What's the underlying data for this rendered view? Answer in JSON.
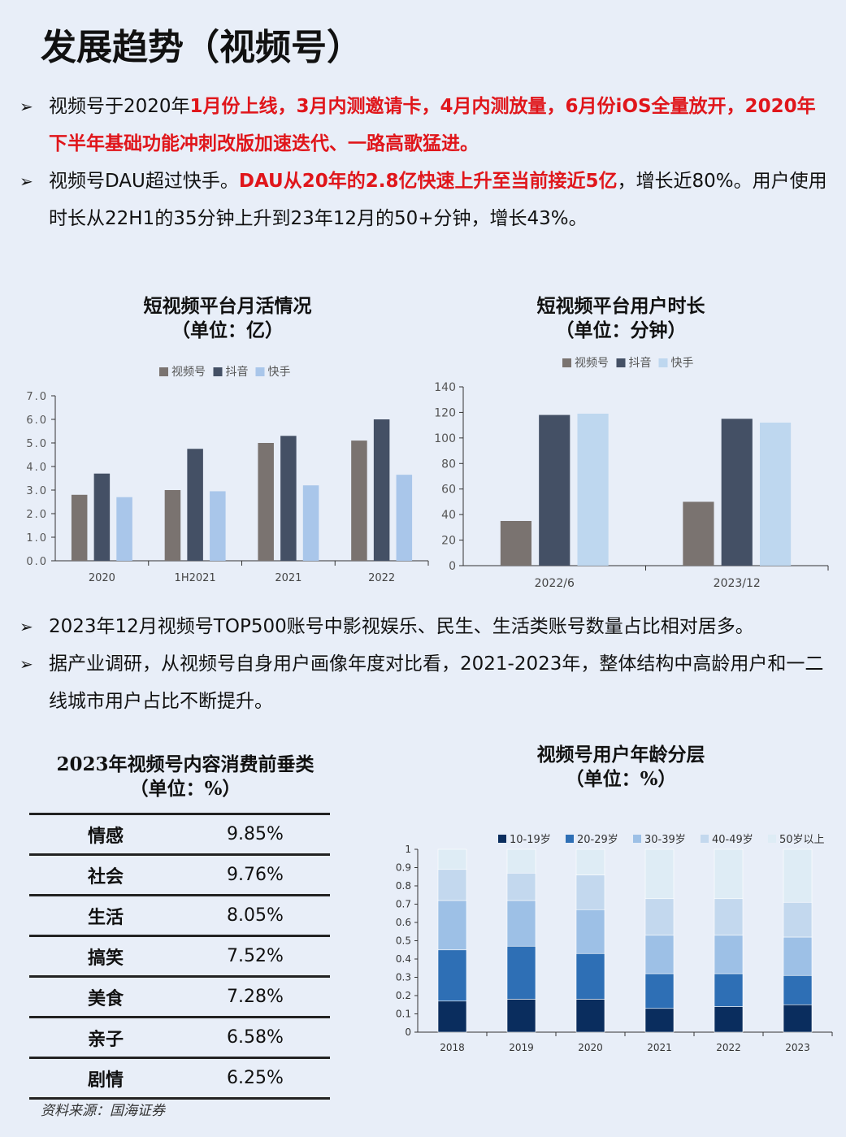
{
  "header": {
    "title": "发展趋势（视频号）"
  },
  "section1": {
    "bullets": [
      {
        "segments": [
          {
            "text": "视频号于2020年",
            "red": false
          },
          {
            "text": "1月份上线，3月内测邀请卡，4月内测放量，6月份iOS全量放开，2020年下半年基础功能冲刺改版加速迭代、一路高歌猛进。",
            "red": true
          }
        ]
      },
      {
        "segments": [
          {
            "text": "视频号DAU超过快手。",
            "red": false
          },
          {
            "text": "DAU从20年的2.8亿快速上升至当前接近5亿",
            "red": true
          },
          {
            "text": "，增长近80%。用户使用时长从22H1的35分钟上升到23年12月的50+分钟，增长43%。",
            "red": false
          }
        ]
      }
    ]
  },
  "section2": {
    "bullets": [
      {
        "segments": [
          {
            "text": "2023年12月视频号TOP500账号中影视娱乐、民生、生活类账号数量占比相对居多。",
            "red": false
          }
        ]
      },
      {
        "segments": [
          {
            "text": "据产业调研，从视频号自身用户画像年度对比看，2021-2023年，整体结构中高龄用户和一二线城市用户占比不断提升。",
            "red": false
          }
        ]
      }
    ]
  },
  "chart_data": [
    {
      "type": "bar",
      "title": "短视频平台月活情况",
      "subtitle": "（单位：亿）",
      "categories": [
        "2020",
        "1H2021",
        "2021",
        "2022"
      ],
      "series": [
        {
          "name": "视频号",
          "values": [
            2.8,
            3.0,
            5.0,
            5.1
          ],
          "color": "#7a7370"
        },
        {
          "name": "抖音",
          "values": [
            3.7,
            4.75,
            5.3,
            6.0
          ],
          "color": "#445065"
        },
        {
          "name": "快手",
          "values": [
            2.7,
            2.95,
            3.2,
            3.65
          ],
          "color": "#a9c6ea"
        }
      ],
      "ylim": [
        0,
        7
      ],
      "yticks": [
        "0.0",
        "1.0",
        "2.0",
        "3.0",
        "4.0",
        "5.0",
        "6.0",
        "7.0"
      ],
      "legend": "top",
      "grid": false
    },
    {
      "type": "bar",
      "title": "短视频平台用户时长",
      "subtitle": "（单位：分钟）",
      "categories": [
        "2022/6",
        "2023/12"
      ],
      "series": [
        {
          "name": "视频号",
          "values": [
            35,
            50
          ],
          "color": "#7a7370"
        },
        {
          "name": "抖音",
          "values": [
            118,
            115
          ],
          "color": "#445065"
        },
        {
          "name": "快手",
          "values": [
            119,
            112
          ],
          "color": "#bed7ef"
        }
      ],
      "ylim": [
        0,
        140
      ],
      "yticks": [
        "0",
        "20",
        "40",
        "60",
        "80",
        "100",
        "120",
        "140"
      ],
      "legend": "top",
      "grid": false
    },
    {
      "type": "table",
      "title": "2023年视频号内容消费前垂类",
      "subtitle": "（单位：%）",
      "rows": [
        [
          "情感",
          "9.85%"
        ],
        [
          "社会",
          "9.76%"
        ],
        [
          "生活",
          "8.05%"
        ],
        [
          "搞笑",
          "7.52%"
        ],
        [
          "美食",
          "7.28%"
        ],
        [
          "亲子",
          "6.58%"
        ],
        [
          "剧情",
          "6.25%"
        ]
      ]
    },
    {
      "type": "bar",
      "stacked": true,
      "title": "视频号用户年龄分层",
      "subtitle": "（单位：%）",
      "categories": [
        "2018",
        "2019",
        "2020",
        "2021",
        "2022",
        "2023"
      ],
      "series": [
        {
          "name": "10-19岁",
          "values": [
            0.17,
            0.18,
            0.18,
            0.13,
            0.14,
            0.15
          ],
          "color": "#0a2d5e"
        },
        {
          "name": "20-29岁",
          "values": [
            0.28,
            0.29,
            0.25,
            0.19,
            0.18,
            0.16
          ],
          "color": "#2e6fb5"
        },
        {
          "name": "30-39岁",
          "values": [
            0.27,
            0.25,
            0.24,
            0.21,
            0.21,
            0.21
          ],
          "color": "#9dc0e6"
        },
        {
          "name": "40-49岁",
          "values": [
            0.17,
            0.15,
            0.19,
            0.2,
            0.2,
            0.19
          ],
          "color": "#c3d8ee"
        },
        {
          "name": "50岁以上",
          "values": [
            0.11,
            0.13,
            0.14,
            0.27,
            0.27,
            0.29
          ],
          "color": "#deecf5"
        }
      ],
      "ylim": [
        0,
        1
      ],
      "yticks": [
        "0",
        "0.1",
        "0.2",
        "0.3",
        "0.4",
        "0.5",
        "0.6",
        "0.7",
        "0.8",
        "0.9",
        "1"
      ],
      "legend": "top",
      "grid": false
    }
  ],
  "footer": {
    "source": "资料来源：国海证券"
  }
}
